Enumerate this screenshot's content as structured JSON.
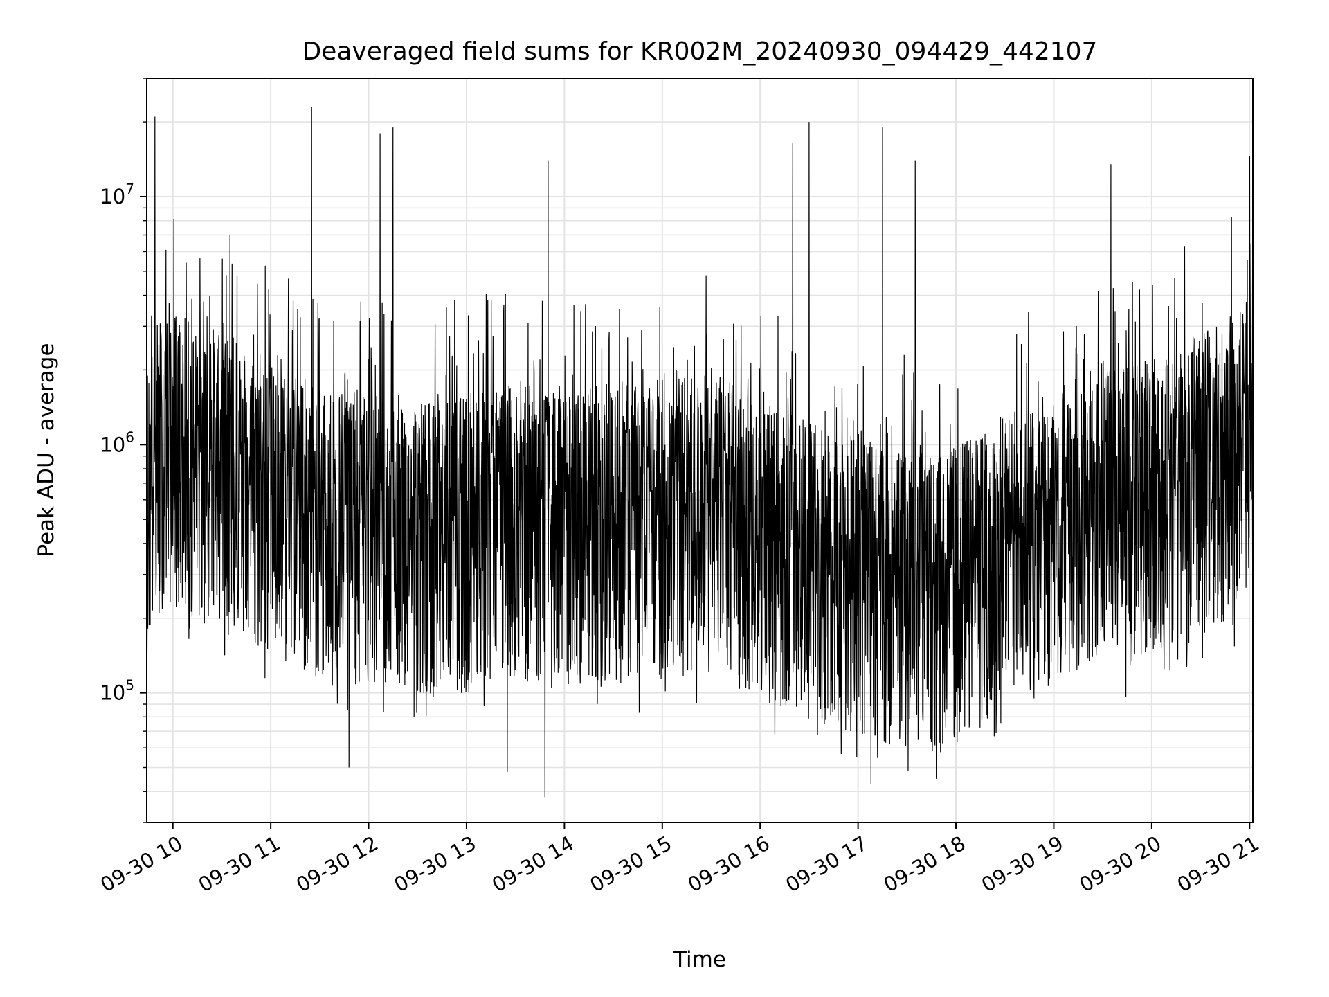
{
  "chart_data": {
    "type": "line",
    "title": "Deaveraged field sums for KR002M_20240930_094429_442107",
    "xlabel": "Time",
    "ylabel": "Peak ADU - average",
    "yscale": "log",
    "ylim": [
      30000,
      30000000
    ],
    "xlim": [
      "2024-09-30 09:44",
      "2024-09-30 21:02"
    ],
    "grid": true,
    "line_color": "#000000",
    "x_ticks": [
      "2024-09-30 10:00",
      "2024-09-30 11:00",
      "2024-09-30 12:00",
      "2024-09-30 13:00",
      "2024-09-30 14:00",
      "2024-09-30 15:00",
      "2024-09-30 16:00",
      "2024-09-30 17:00",
      "2024-09-30 18:00",
      "2024-09-30 19:00",
      "2024-09-30 20:00",
      "2024-09-30 21:00"
    ],
    "x_tick_labels": [
      "09-30 10",
      "09-30 11",
      "09-30 12",
      "09-30 13",
      "09-30 14",
      "09-30 15",
      "09-30 16",
      "09-30 17",
      "09-30 18",
      "09-30 19",
      "09-30 20",
      "09-30 21"
    ],
    "y_ticks": [
      {
        "value": 100000,
        "base": "10",
        "exp": "5"
      },
      {
        "value": 1000000,
        "base": "10",
        "exp": "6"
      },
      {
        "value": 10000000,
        "base": "10",
        "exp": "7"
      }
    ],
    "series": [
      {
        "values_description": "dense noisy trace of Peak ADU - average vs time, representative sampled points",
        "x": [
          "2024-09-30 09:44",
          "2024-09-30 09:50",
          "2024-09-30 09:55",
          "2024-09-30 10:00",
          "2024-09-30 10:10",
          "2024-09-30 10:20",
          "2024-09-30 10:30",
          "2024-09-30 10:45",
          "2024-09-30 11:00",
          "2024-09-30 11:15",
          "2024-09-30 11:30",
          "2024-09-30 11:45",
          "2024-09-30 12:00",
          "2024-09-30 12:15",
          "2024-09-30 12:30",
          "2024-09-30 12:45",
          "2024-09-30 13:00",
          "2024-09-30 13:15",
          "2024-09-30 13:30",
          "2024-09-30 13:45",
          "2024-09-30 14:00",
          "2024-09-30 14:15",
          "2024-09-30 14:30",
          "2024-09-30 14:45",
          "2024-09-30 15:00",
          "2024-09-30 15:15",
          "2024-09-30 15:30",
          "2024-09-30 15:45",
          "2024-09-30 16:00",
          "2024-09-30 16:15",
          "2024-09-30 16:30",
          "2024-09-30 16:45",
          "2024-09-30 17:00",
          "2024-09-30 17:15",
          "2024-09-30 17:30",
          "2024-09-30 17:45",
          "2024-09-30 18:00",
          "2024-09-30 18:15",
          "2024-09-30 18:30",
          "2024-09-30 18:45",
          "2024-09-30 19:00",
          "2024-09-30 19:15",
          "2024-09-30 19:30",
          "2024-09-30 19:45",
          "2024-09-30 20:00",
          "2024-09-30 20:15",
          "2024-09-30 20:30",
          "2024-09-30 20:45",
          "2024-09-30 21:00",
          "2024-09-30 21:02"
        ],
        "baseline": [
          600000,
          900000,
          1000000,
          1000000,
          900000,
          800000,
          900000,
          700000,
          600000,
          550000,
          500000,
          500000,
          450000,
          450000,
          450000,
          420000,
          450000,
          480000,
          500000,
          480000,
          450000,
          500000,
          500000,
          500000,
          520000,
          550000,
          550000,
          500000,
          420000,
          380000,
          350000,
          320000,
          300000,
          280000,
          260000,
          250000,
          280000,
          320000,
          380000,
          400000,
          500000,
          550000,
          600000,
          600000,
          650000,
          700000,
          800000,
          900000,
          1100000,
          1100000
        ],
        "peaks": [
          {
            "x": "2024-09-30 09:49",
            "y": 21000000
          },
          {
            "x": "2024-09-30 10:35",
            "y": 7000000
          },
          {
            "x": "2024-09-30 11:25",
            "y": 23000000
          },
          {
            "x": "2024-09-30 12:07",
            "y": 18000000
          },
          {
            "x": "2024-09-30 12:15",
            "y": 19000000
          },
          {
            "x": "2024-09-30 13:50",
            "y": 14000000
          },
          {
            "x": "2024-09-30 16:20",
            "y": 16500000
          },
          {
            "x": "2024-09-30 16:30",
            "y": 20000000
          },
          {
            "x": "2024-09-30 17:15",
            "y": 19000000
          },
          {
            "x": "2024-09-30 17:35",
            "y": 14000000
          },
          {
            "x": "2024-09-30 19:35",
            "y": 13500000
          },
          {
            "x": "2024-09-30 21:00",
            "y": 14500000
          }
        ],
        "troughs": [
          {
            "x": "2024-09-30 11:48",
            "y": 50000
          },
          {
            "x": "2024-09-30 13:25",
            "y": 48000
          },
          {
            "x": "2024-09-30 13:48",
            "y": 38000
          },
          {
            "x": "2024-09-30 17:08",
            "y": 43000
          },
          {
            "x": "2024-09-30 17:48",
            "y": 45000
          }
        ]
      }
    ]
  }
}
